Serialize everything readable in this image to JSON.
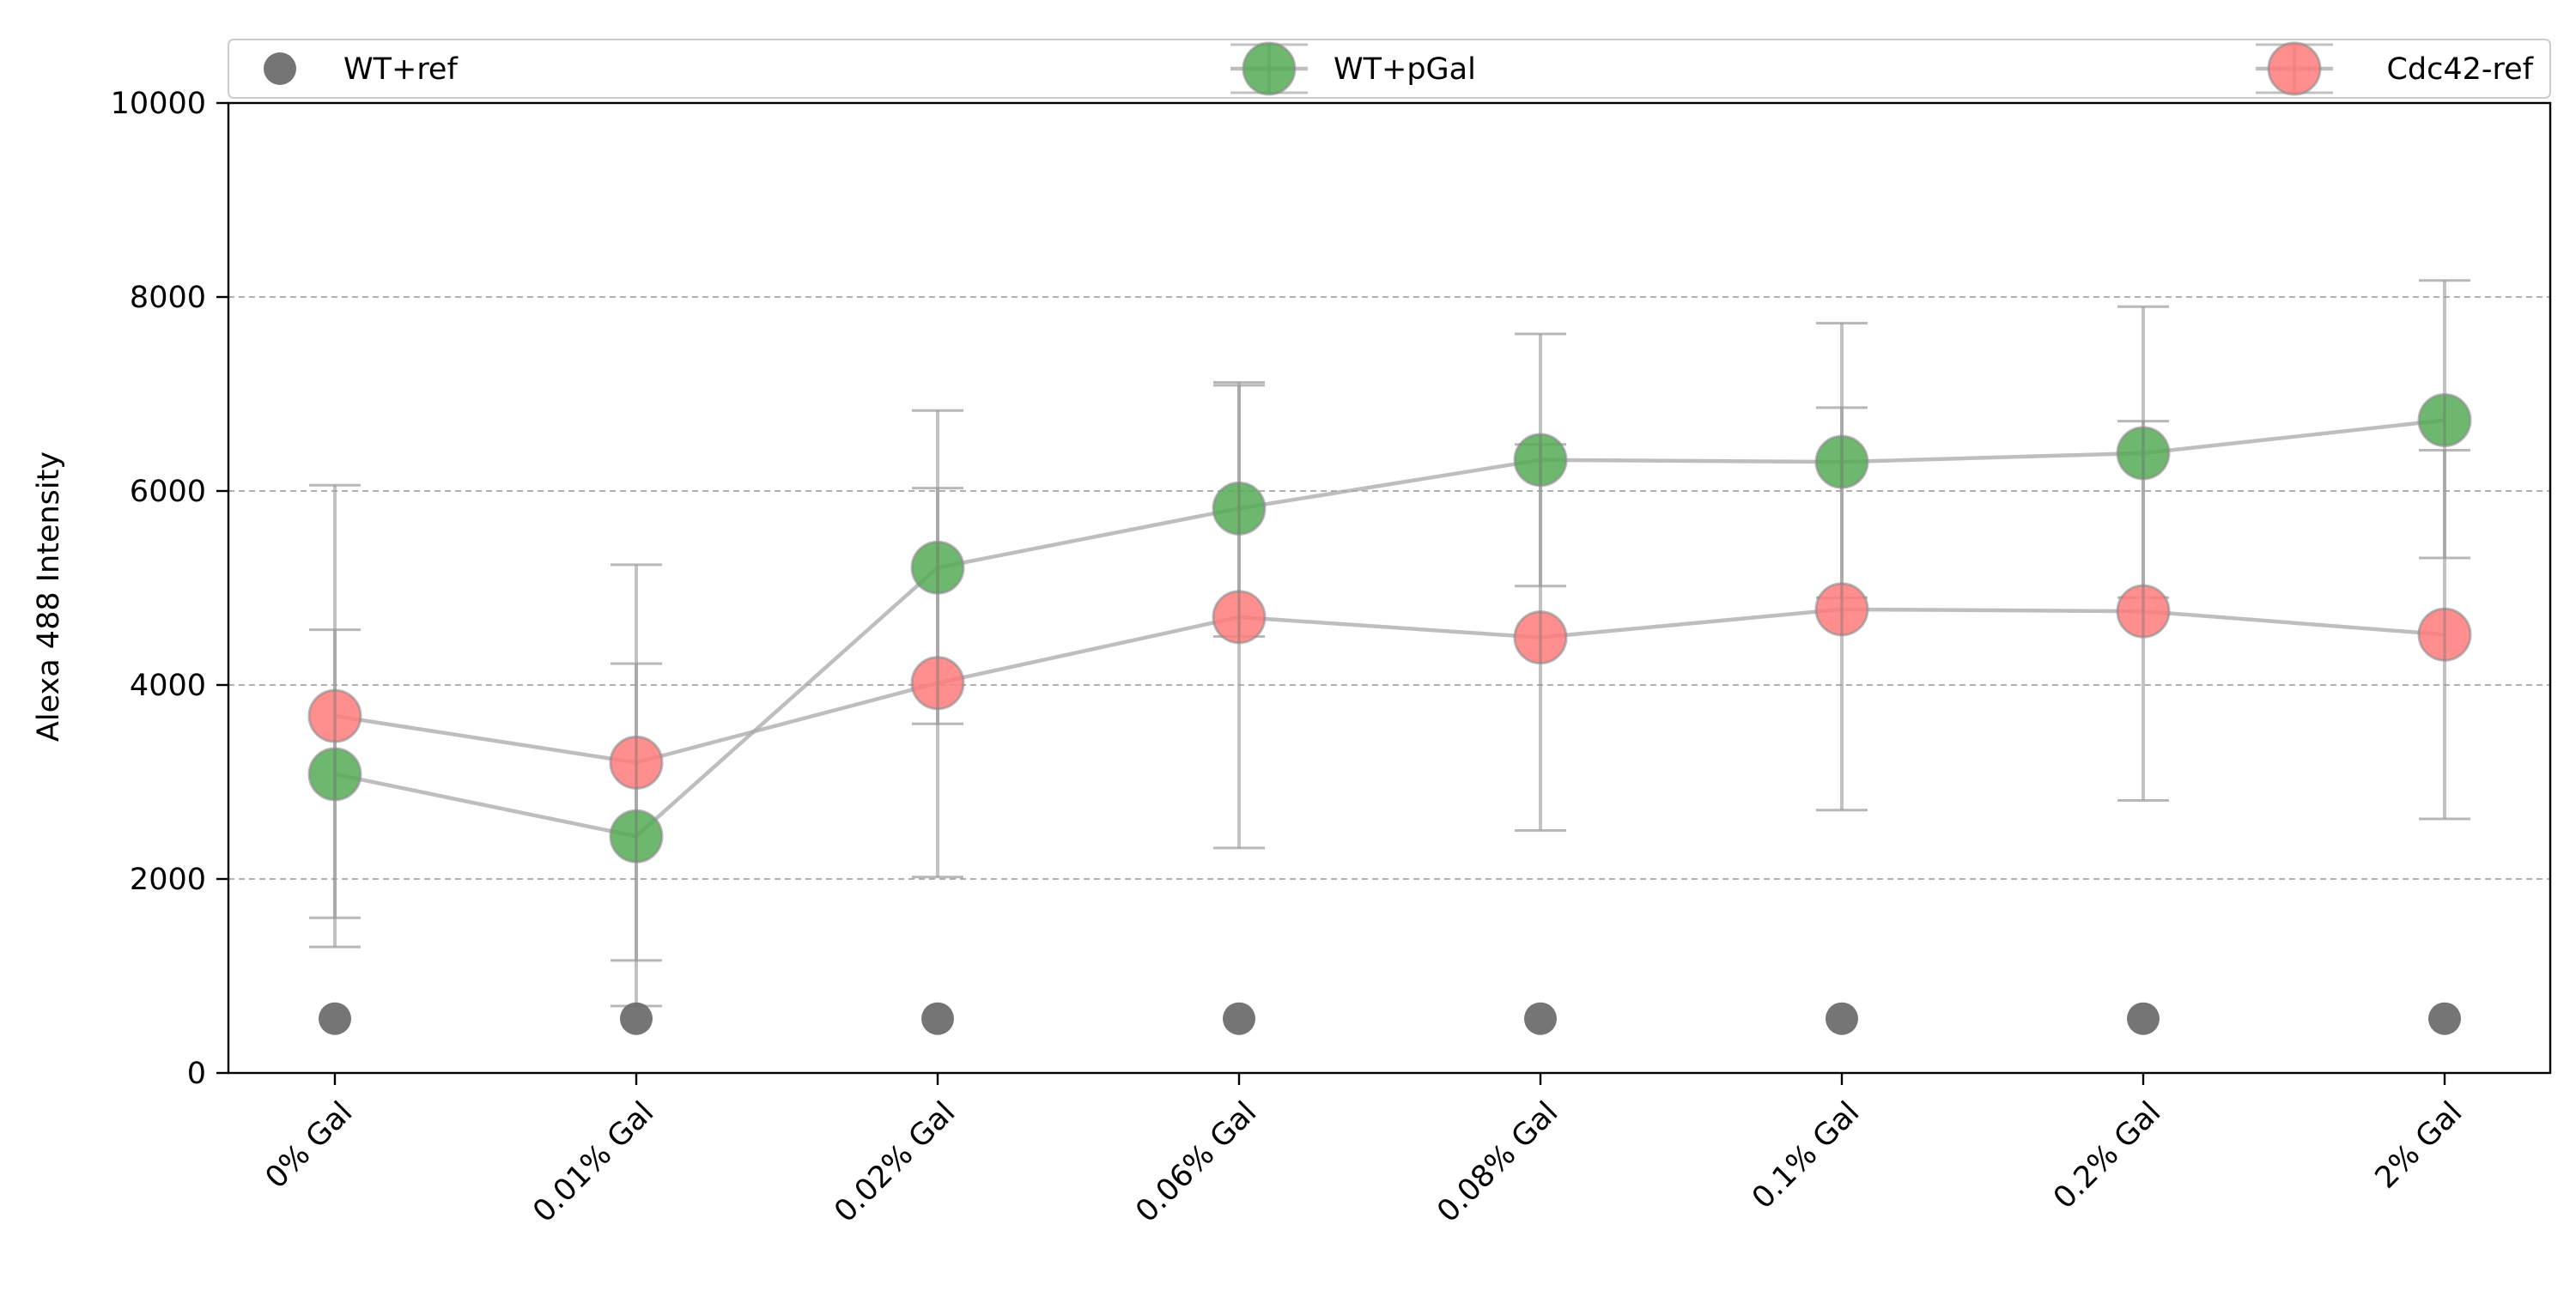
{
  "chart_data": {
    "type": "scatter",
    "title": "",
    "xlabel": "",
    "ylabel": "Alexa 488 Intensity",
    "categories": [
      "0% Gal",
      "0.01% Gal",
      "0.02% Gal",
      "0.06% Gal",
      "0.08% Gal",
      "0.1% Gal",
      "0.2% Gal",
      "2% Gal"
    ],
    "ylim": [
      0,
      10000
    ],
    "yticks": [
      0,
      2000,
      4000,
      6000,
      8000,
      10000
    ],
    "ytick_labels": [
      "0",
      "2000",
      "4000",
      "6000",
      "8000",
      "10000"
    ],
    "grid": "horizontal dashed",
    "legend_position": "top",
    "series": [
      {
        "name": "WT+ref",
        "color": "#6e6e6e",
        "marker": "small circle",
        "values": [
          560,
          560,
          560,
          560,
          560,
          560,
          560,
          560
        ]
      },
      {
        "name": "WT+pGal",
        "color": "#55aa55",
        "marker": "large circle with error bars",
        "values": [
          3080,
          2440,
          5210,
          5820,
          6320,
          6300,
          6390,
          6730
        ],
        "error_low": [
          1600,
          690,
          3600,
          4500,
          5020,
          4900,
          4900,
          5310
        ],
        "error_high": [
          4570,
          4220,
          6830,
          7120,
          7620,
          7730,
          7900,
          8170
        ]
      },
      {
        "name": "Cdc42-ref",
        "color": "#ff7a7a",
        "marker": "large circle with error bars",
        "values": [
          3680,
          3200,
          4020,
          4700,
          4490,
          4780,
          4760,
          4520
        ],
        "error_low": [
          1300,
          1160,
          2020,
          2320,
          2500,
          2710,
          2810,
          2620
        ],
        "error_high": [
          6060,
          5240,
          6030,
          7090,
          6480,
          6860,
          6720,
          6420
        ]
      }
    ]
  }
}
